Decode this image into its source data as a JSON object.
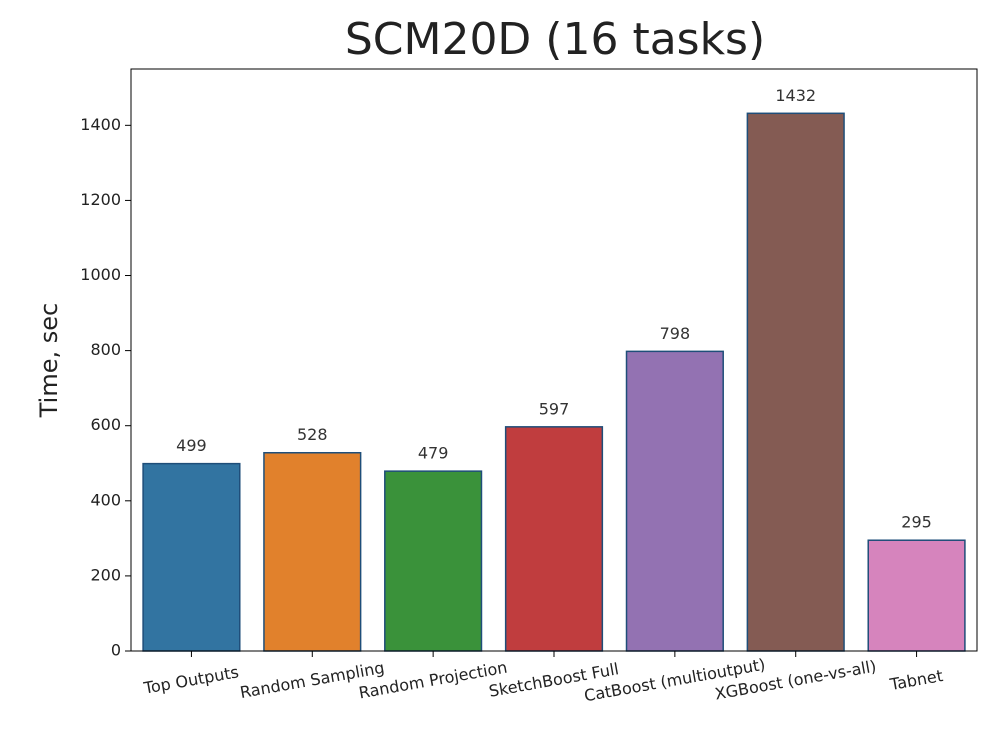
{
  "chart_data": {
    "type": "bar",
    "title": "SCM20D (16 tasks)",
    "y_label": "Time, sec",
    "categories": [
      "Top Outputs",
      "Random Sampling",
      "Random Projection",
      "SketchBoost Full",
      "CatBoost (multioutput)",
      "XGBoost (one-vs-all)",
      "Tabnet"
    ],
    "values": [
      499,
      528,
      479,
      597,
      798,
      1432,
      295
    ],
    "colors": [
      "#3274a1",
      "#e1812c",
      "#3a923a",
      "#c03d3e",
      "#9372b2",
      "#845b53",
      "#d684bd"
    ],
    "edge_color": "#1f4e79",
    "ylim": [
      0,
      1550
    ],
    "yticks": [
      0,
      200,
      400,
      600,
      800,
      1000,
      1200,
      1400
    ]
  }
}
